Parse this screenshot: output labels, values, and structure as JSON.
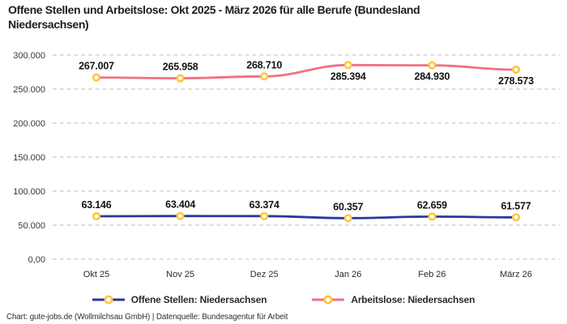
{
  "title": "Offene Stellen und Arbeitslose: Okt 2025 - März 2026 für alle Berufe (Bundesland\nNiedersachsen)",
  "footer": "Chart: gute-jobs.de (Wollmilchsau GmbH) | Datenquelle: Bundesagentur für Arbeit",
  "colors": {
    "background": "#ffffff",
    "open_positions_line": "#28389b",
    "unemployed_line": "#f56e84",
    "marker_stroke": "#ffc53d",
    "marker_fill": "#ffffff",
    "gridline": "#cbcbcb"
  },
  "chart_data": {
    "type": "line",
    "title": "Offene Stellen und Arbeitslose: Okt 2025 - März 2026 für alle Berufe (Bundesland Niedersachsen)",
    "xlabel": "",
    "ylabel": "",
    "categories": [
      "Okt 25",
      "Nov 25",
      "Dez 25",
      "Jan 26",
      "Feb 26",
      "März 26"
    ],
    "series": [
      {
        "name": "Offene Stellen: Niedersachsen",
        "color": "#28389b",
        "values": [
          63146,
          63404,
          63374,
          60357,
          62659,
          61577
        ],
        "labels": [
          "63.146",
          "63.404",
          "63.374",
          "60.357",
          "62.659",
          "61.577"
        ],
        "label_positions": [
          "above",
          "above",
          "above",
          "above",
          "above",
          "above"
        ]
      },
      {
        "name": "Arbeitslose: Niedersachsen",
        "color": "#f56e84",
        "values": [
          267007,
          265958,
          268710,
          285394,
          284930,
          278573
        ],
        "labels": [
          "267.007",
          "265.958",
          "268.710",
          "285.394",
          "284.930",
          "278.573"
        ],
        "label_positions": [
          "above",
          "above",
          "above",
          "below",
          "below",
          "below"
        ]
      }
    ],
    "ylim": [
      0,
      300000
    ],
    "y_ticks": [
      {
        "value": 300000,
        "label": "300.000"
      },
      {
        "value": 250000,
        "label": "250.000"
      },
      {
        "value": 200000,
        "label": "200.000"
      },
      {
        "value": 150000,
        "label": "150.000"
      },
      {
        "value": 100000,
        "label": "100.000"
      },
      {
        "value": 50000,
        "label": "50.000"
      },
      {
        "value": 0,
        "label": "0,00"
      }
    ],
    "grid": "dashed-horizontal",
    "legend_position": "bottom",
    "marker": {
      "fill": "#ffffff",
      "stroke": "#ffc53d"
    }
  }
}
